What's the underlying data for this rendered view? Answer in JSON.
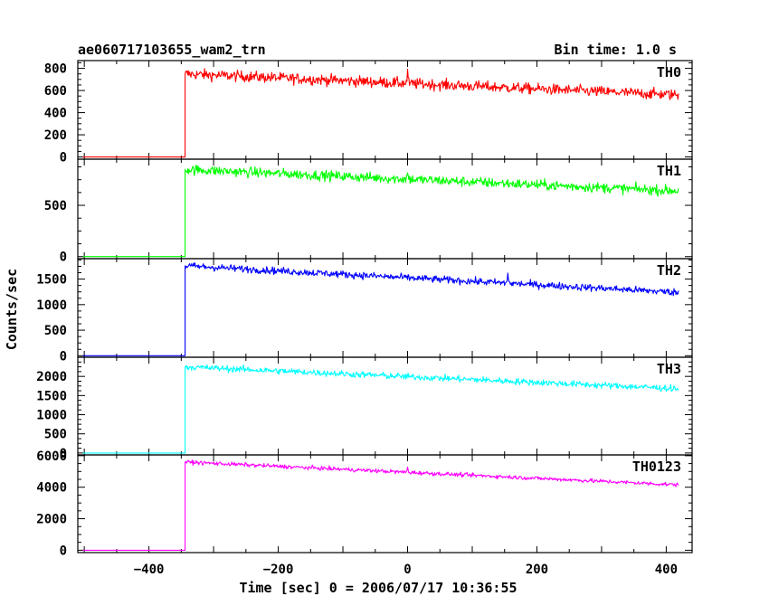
{
  "header": {
    "title": "ae060717103655_wam2_trn",
    "bin_time": "Bin time: 1.0 s"
  },
  "axes": {
    "xlabel": "Time [sec] 0 = 2006/07/17 10:36:55",
    "ylabel": "Counts/sec"
  },
  "chart_data": {
    "type": "line",
    "x_range": [
      -510,
      440
    ],
    "x_ticks": [
      -400,
      -200,
      0,
      200,
      400
    ],
    "x_tick_labels": [
      "−400",
      "−200",
      "0",
      "200",
      "400"
    ],
    "step_time": -344,
    "x_end": 419,
    "panels": [
      {
        "name": "TH0",
        "color": "#ff0000",
        "ylim": [
          -20,
          870
        ],
        "y_ticks": [
          0,
          200,
          400,
          600,
          800
        ],
        "y_tick_labels": [
          "0",
          "200",
          "400",
          "600",
          "800"
        ],
        "pre_level": 0,
        "start_level": 750,
        "end_level": 560,
        "noise": 35,
        "spike": {
          "x": 0,
          "height": 120
        }
      },
      {
        "name": "TH1",
        "color": "#00ff00",
        "ylim": [
          -20,
          950
        ],
        "y_ticks": [
          0,
          500
        ],
        "y_tick_labels": [
          "0",
          "500"
        ],
        "pre_level": 0,
        "start_level": 850,
        "end_level": 640,
        "noise": 35,
        "spike": {
          "x": 0,
          "height": 90
        }
      },
      {
        "name": "TH2",
        "color": "#0000ff",
        "ylim": [
          -30,
          1900
        ],
        "y_ticks": [
          0,
          500,
          1000,
          1500
        ],
        "y_tick_labels": [
          "0",
          "500",
          "1000",
          "1500"
        ],
        "pre_level": 0,
        "start_level": 1760,
        "end_level": 1240,
        "noise": 50,
        "spike": {
          "x": 155,
          "height": 230
        }
      },
      {
        "name": "TH3",
        "color": "#00ffff",
        "ylim": [
          -50,
          2500
        ],
        "y_ticks": [
          0,
          500,
          1000,
          1500,
          2000
        ],
        "y_tick_labels": [
          "0",
          "500",
          "1000",
          "1500",
          "2000"
        ],
        "pre_level": 0,
        "start_level": 2250,
        "end_level": 1680,
        "noise": 60,
        "spike": {
          "x": 0,
          "height": 0
        }
      },
      {
        "name": "TH0123",
        "color": "#ff00ff",
        "ylim": [
          -150,
          6050
        ],
        "y_ticks": [
          0,
          2000,
          4000,
          6000
        ],
        "y_tick_labels": [
          "0",
          "2000",
          "4000",
          "6000"
        ],
        "pre_level": 0,
        "start_level": 5600,
        "end_level": 4150,
        "noise": 90,
        "spike": {
          "x": 0,
          "height": 350
        }
      }
    ]
  }
}
